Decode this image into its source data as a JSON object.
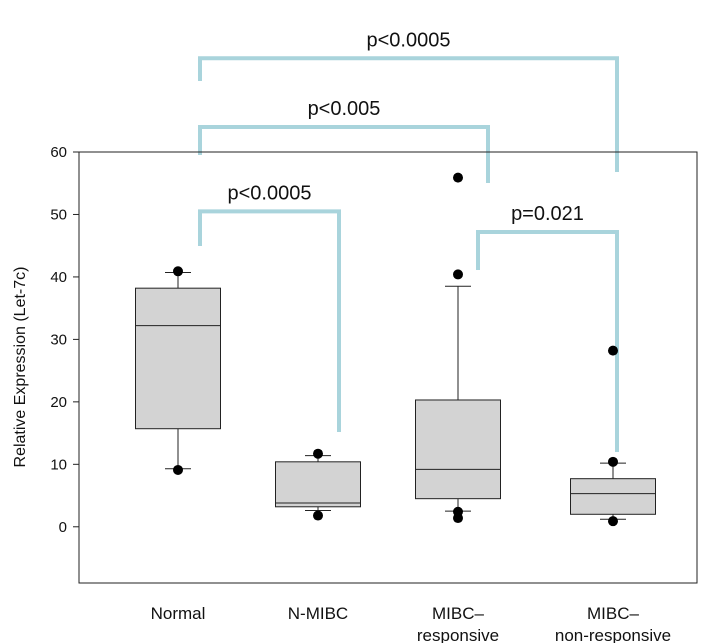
{
  "chart_data": {
    "type": "box",
    "ylabel": "Relative Expression (Let-7c)",
    "xlabel": "",
    "ylim": [
      -9,
      60
    ],
    "yticks": [
      0,
      10,
      20,
      30,
      40,
      50,
      60
    ],
    "categories": [
      {
        "label": "Normal",
        "sub": ""
      },
      {
        "label": "N-MIBC",
        "sub": ""
      },
      {
        "label": "MIBC–",
        "sub": "responsive"
      },
      {
        "label": "MIBC–",
        "sub": "non-responsive"
      }
    ],
    "boxes": [
      {
        "name": "Normal",
        "whisker_low": 9.3,
        "q1": 15.7,
        "median": 32.2,
        "q3": 38.2,
        "whisker_high": 40.7,
        "outliers": [
          9.1,
          40.9
        ]
      },
      {
        "name": "N-MIBC",
        "whisker_low": 2.6,
        "q1": 3.2,
        "median": 3.8,
        "q3": 10.4,
        "whisker_high": 11.4,
        "outliers": [
          1.8,
          11.7
        ]
      },
      {
        "name": "MIBC– responsive",
        "whisker_low": 2.5,
        "q1": 4.5,
        "median": 9.2,
        "q3": 20.3,
        "whisker_high": 38.5,
        "outliers": [
          1.4,
          2.4,
          40.4,
          55.9
        ]
      },
      {
        "name": "MIBC– non-responsive",
        "whisker_low": 1.2,
        "q1": 2.0,
        "median": 5.3,
        "q3": 7.7,
        "whisker_high": 10.2,
        "outliers": [
          0.9,
          10.4,
          28.2
        ]
      }
    ],
    "comparisons": [
      {
        "label": "p<0.0005",
        "from": 0,
        "to": 3,
        "level": 75
      },
      {
        "label": "p<0.005",
        "from": 0,
        "to": 2,
        "level": 64
      },
      {
        "label": "p<0.0005",
        "from": 0,
        "to": 1,
        "level": 50.5
      },
      {
        "label": "p=0.021",
        "from": 2,
        "to": 3,
        "level": 47.2
      }
    ],
    "box_color": "#d3d3d3",
    "bracket_color": "#a9d4dc",
    "grid": false
  }
}
